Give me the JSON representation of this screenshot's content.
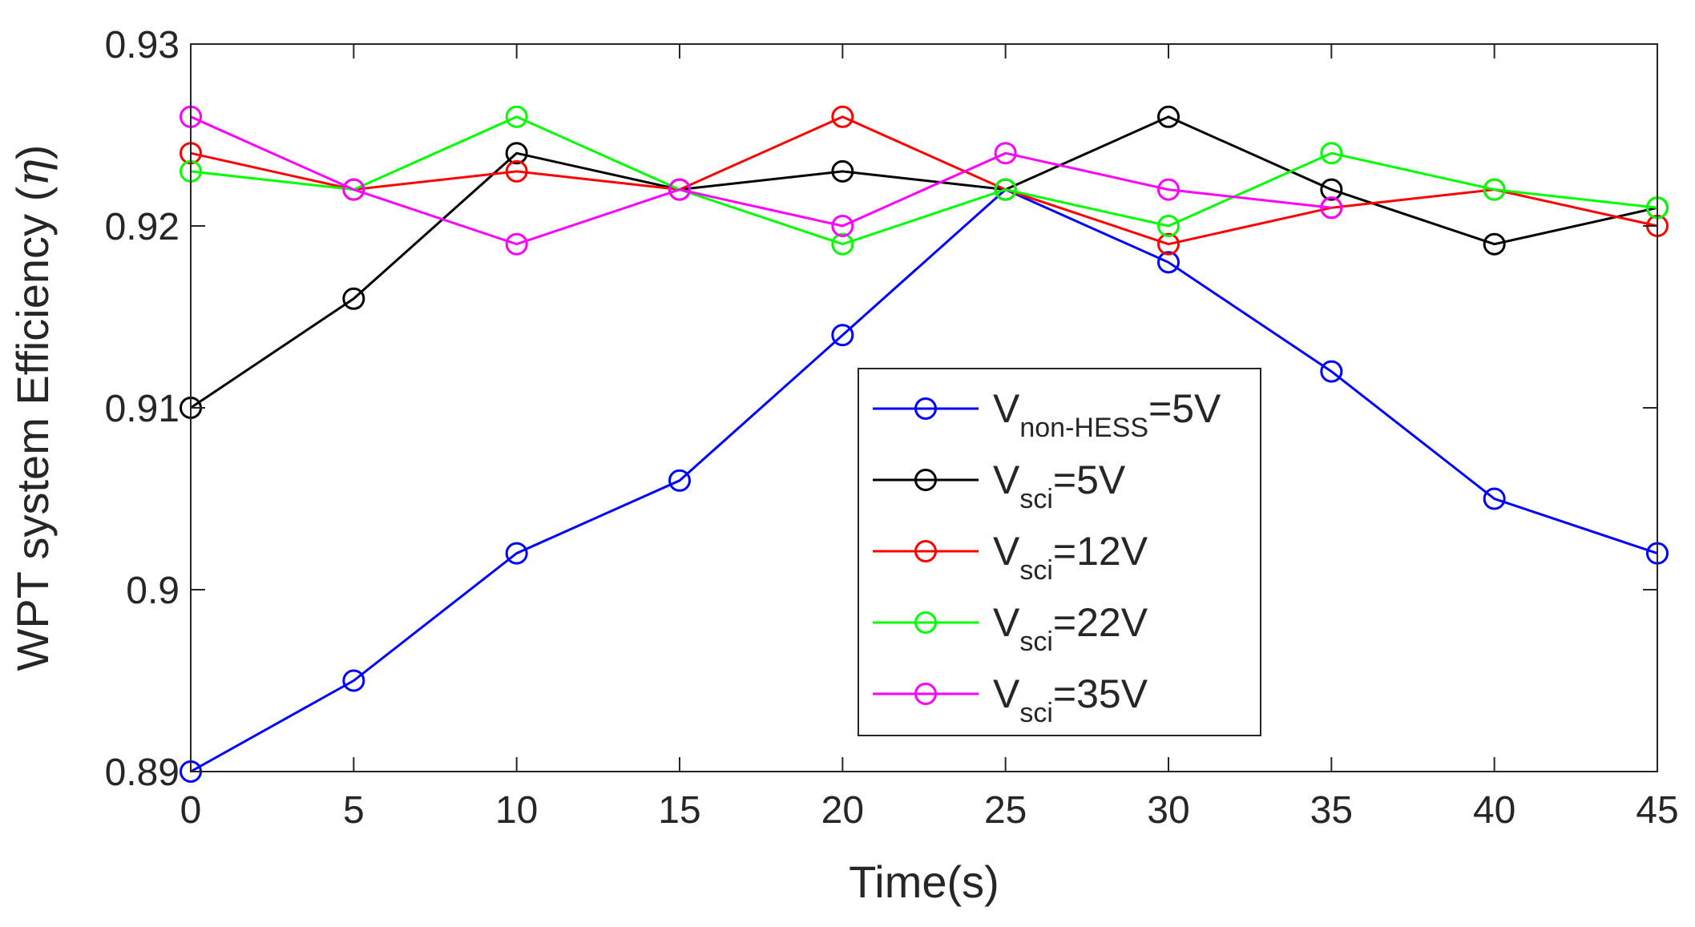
{
  "chart_data": {
    "type": "line",
    "title": "",
    "xlabel": "Time(s)",
    "ylabel_main": "WPT system Efficiency (",
    "ylabel_symbol": "η",
    "ylabel_close": ")",
    "x": [
      0,
      5,
      10,
      15,
      20,
      25,
      30,
      35,
      40,
      45
    ],
    "xlim": [
      0,
      45
    ],
    "ylim": [
      0.89,
      0.93
    ],
    "xticks": [
      0,
      5,
      10,
      15,
      20,
      25,
      30,
      35,
      40,
      45
    ],
    "yticks": [
      0.89,
      0.9,
      0.91,
      0.92,
      0.93
    ],
    "xtick_labels": [
      "0",
      "5",
      "10",
      "15",
      "20",
      "25",
      "30",
      "35",
      "40",
      "45"
    ],
    "ytick_labels": [
      "0.89",
      "0.9",
      "0.91",
      "0.92",
      "0.93"
    ],
    "grid": false,
    "legend_position": "center",
    "series": [
      {
        "name": "V_non-HESS=5V",
        "label_main": "V",
        "label_sub": "non-HESS",
        "label_tail": "=5V",
        "color": "#0000ff",
        "values": [
          0.89,
          0.895,
          0.902,
          0.906,
          0.914,
          0.922,
          0.918,
          0.912,
          0.905,
          0.902
        ]
      },
      {
        "name": "V_sci=5V",
        "label_main": "V",
        "label_sub": "sci",
        "label_tail": "=5V",
        "color": "#000000",
        "values": [
          0.91,
          0.916,
          0.924,
          0.922,
          0.923,
          0.922,
          0.926,
          0.922,
          0.919,
          0.921
        ]
      },
      {
        "name": "V_sci=12V",
        "label_main": "V",
        "label_sub": "sci",
        "label_tail": "=12V",
        "color": "#ff0000",
        "values": [
          0.924,
          0.922,
          0.923,
          0.922,
          0.926,
          0.922,
          0.919,
          0.921,
          0.922,
          0.92
        ]
      },
      {
        "name": "V_sci=22V",
        "label_main": "V",
        "label_sub": "sci",
        "label_tail": "=22V",
        "color": "#00ff00",
        "values": [
          0.923,
          0.922,
          0.926,
          0.922,
          0.919,
          0.922,
          0.92,
          0.924,
          0.922,
          0.921
        ]
      },
      {
        "name": "V_sci=35V",
        "label_main": "V",
        "label_sub": "sci",
        "label_tail": "=35V",
        "color": "#ff00ff",
        "values": [
          0.926,
          0.922,
          0.919,
          0.922,
          0.92,
          0.924,
          0.922,
          0.921,
          null,
          null
        ]
      }
    ]
  }
}
